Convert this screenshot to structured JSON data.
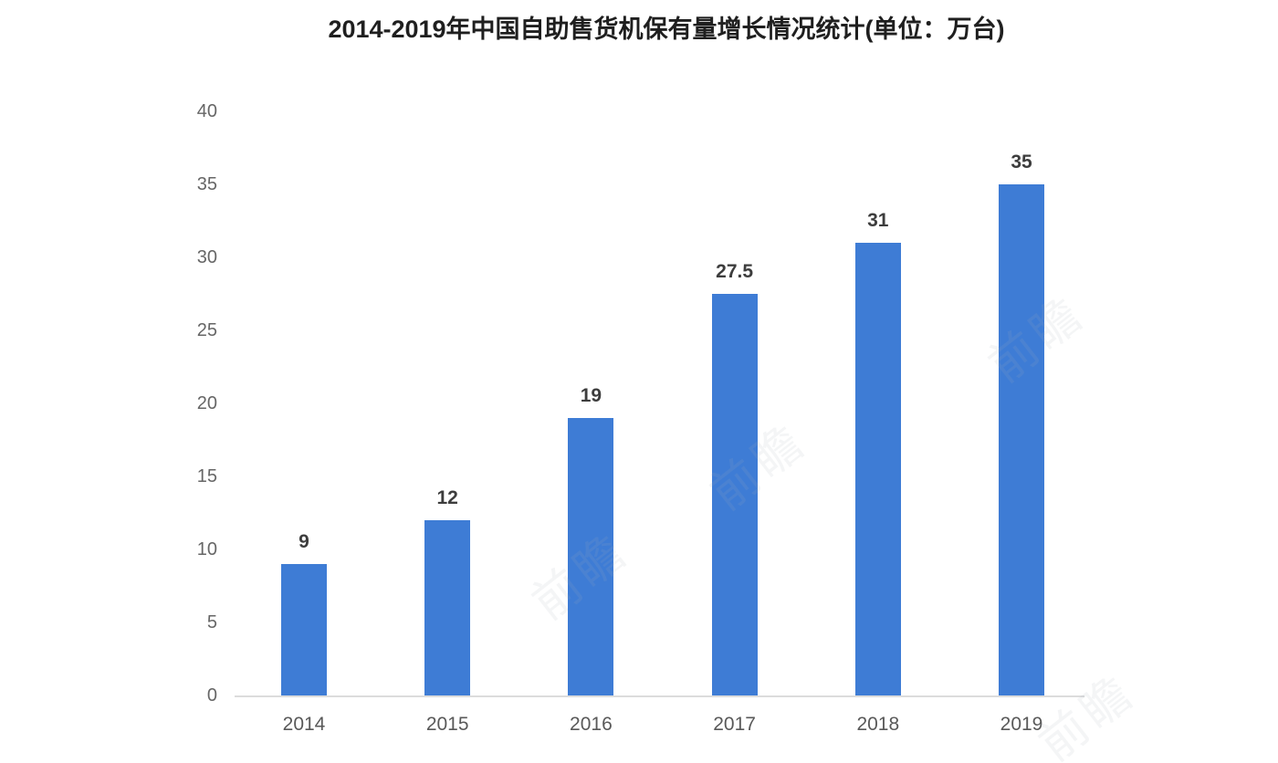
{
  "title": "2014-2019年中国自助售货机保有量增长情况统计(单位：万台)",
  "watermark": {
    "text": "前瞻"
  },
  "colors": {
    "bar": "#3e7cd5",
    "axis_line": "#dcdcdc",
    "tick_label": "#666666",
    "x_label": "#595959",
    "value_label": "#3d3d3d",
    "title": "#1f1f1f",
    "background": "#ffffff"
  },
  "chart_data": {
    "type": "bar",
    "title": "2014-2019年中国自助售货机保有量增长情况统计(单位：万台)",
    "categories": [
      "2014",
      "2015",
      "2016",
      "2017",
      "2018",
      "2019"
    ],
    "values": [
      9,
      12,
      19,
      27.5,
      31,
      35
    ],
    "value_labels": [
      "9",
      "12",
      "19",
      "27.5",
      "31",
      "35"
    ],
    "xlabel": "",
    "ylabel": "",
    "unit": "万台",
    "ylim": [
      0,
      40
    ],
    "yticks": [
      0,
      5,
      10,
      15,
      20,
      25,
      30,
      35,
      40
    ],
    "grid": false,
    "legend": null,
    "bar_color": "#3e7cd5"
  }
}
